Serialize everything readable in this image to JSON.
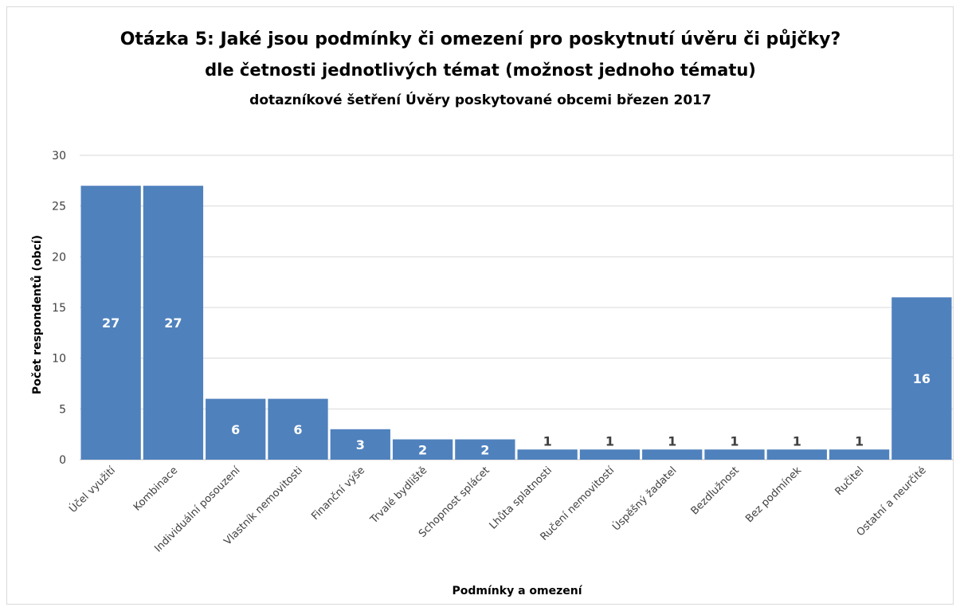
{
  "chart_data": {
    "type": "bar",
    "title": "Otázka 5: Jaké jsou podmínky či omezení pro poskytnutí úvěru či půjčky?",
    "subtitle": "dle četnosti jednotlivých témat (možnost jednoho tématu)",
    "subtitle2": "dotazníkové šetření Úvěry poskytované obcemi březen 2017",
    "xlabel": "Podmínky a omezení",
    "ylabel": "Počet respondentů (obcí)",
    "ylim": [
      0,
      30
    ],
    "yticks": [
      0,
      5,
      10,
      15,
      20,
      25,
      30
    ],
    "grid": true,
    "legend": "none",
    "categories": [
      "Účel využití",
      "Kombinace",
      "Individuální posouzení",
      "Vlastník nemovitosti",
      "Finanční výše",
      "Trvalé bydliště",
      "Schopnost splácet",
      "Lhůta splatnosti",
      "Ručení nemovitostí",
      "Úspěšný žadatel",
      "Bezdlužnost",
      "Bez podmínek",
      "Ručitel",
      "Ostatní a neurčité"
    ],
    "values": [
      27,
      27,
      6,
      6,
      3,
      2,
      2,
      1,
      1,
      1,
      1,
      1,
      1,
      16
    ],
    "colors": {
      "bar": "#4f81bd",
      "grid": "#d9d9d9",
      "label_inside": "#ffffff",
      "label_outside": "#404040"
    }
  }
}
